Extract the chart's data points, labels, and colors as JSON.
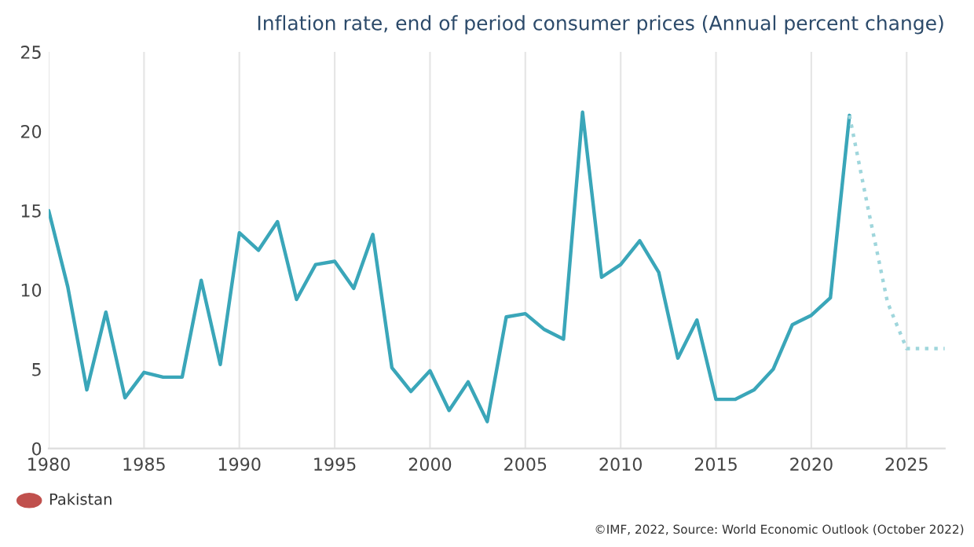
{
  "chart_data": {
    "type": "line",
    "title": "Inflation rate, end of period consumer prices (Annual percent change)",
    "series": [
      {
        "color": "#3aa6b9",
        "line_style": "solid",
        "x": [
          1980,
          1981,
          1982,
          1983,
          1984,
          1985,
          1986,
          1987,
          1988,
          1989,
          1990,
          1991,
          1992,
          1993,
          1994,
          1995,
          1996,
          1997,
          1998,
          1999,
          2000,
          2001,
          2002,
          2003,
          2004,
          2005,
          2006,
          2007,
          2008,
          2009,
          2010,
          2011,
          2012,
          2013,
          2014,
          2015,
          2016,
          2017,
          2018,
          2019,
          2020,
          2021,
          2022
        ],
        "values": [
          15.0,
          10.2,
          3.7,
          8.6,
          3.2,
          4.8,
          4.5,
          4.5,
          10.6,
          5.3,
          13.6,
          12.5,
          14.3,
          9.4,
          11.6,
          11.8,
          10.1,
          13.5,
          5.1,
          3.6,
          4.9,
          2.4,
          4.2,
          1.7,
          8.3,
          8.5,
          7.5,
          6.9,
          21.2,
          10.8,
          11.6,
          13.1,
          11.1,
          5.7,
          8.1,
          3.1,
          3.1,
          3.7,
          5.0,
          7.8,
          8.4,
          9.5,
          21.0
        ]
      },
      {
        "color": "#9fd6dc",
        "line_style": "dotted",
        "x": [
          2022,
          2023,
          2024,
          2025,
          2026,
          2027
        ],
        "values": [
          21.0,
          15.0,
          9.2,
          6.3,
          6.3,
          6.3
        ]
      }
    ],
    "xlim": [
      1980,
      2027
    ],
    "xticks": [
      1980,
      1985,
      1990,
      1995,
      2000,
      2005,
      2010,
      2015,
      2020,
      2025
    ],
    "ylim": [
      0,
      25
    ],
    "yticks": [
      0,
      5,
      10,
      15,
      20,
      25
    ],
    "grid": "x",
    "marker": "none",
    "annotations": [
      "Pakistan",
      "©IMF, 2022, Source: World Economic Outlook (October 2022)"
    ]
  }
}
